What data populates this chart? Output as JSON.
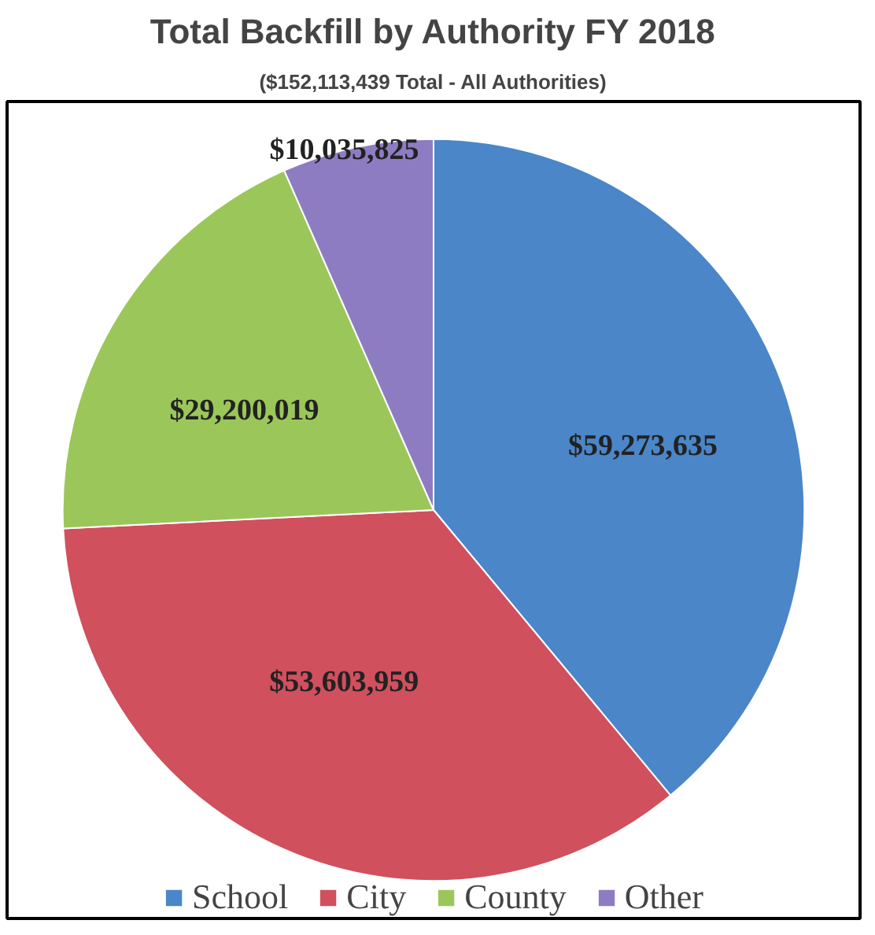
{
  "chart_data": {
    "type": "pie",
    "title": "Total Backfill by Authority FY 2018",
    "subtitle": "($152,113,439 Total - All Authorities)",
    "categories": [
      "School",
      "City",
      "County",
      "Other"
    ],
    "values": [
      59273635,
      53603959,
      29200019,
      10035825
    ],
    "colors": [
      "#4a86c8",
      "#d0505e",
      "#9bc75a",
      "#8e7cc3"
    ],
    "value_labels": [
      "$59,273,635",
      "$53,603,959",
      "$29,200,019",
      "$10,035,825"
    ],
    "legend": "bottom"
  }
}
